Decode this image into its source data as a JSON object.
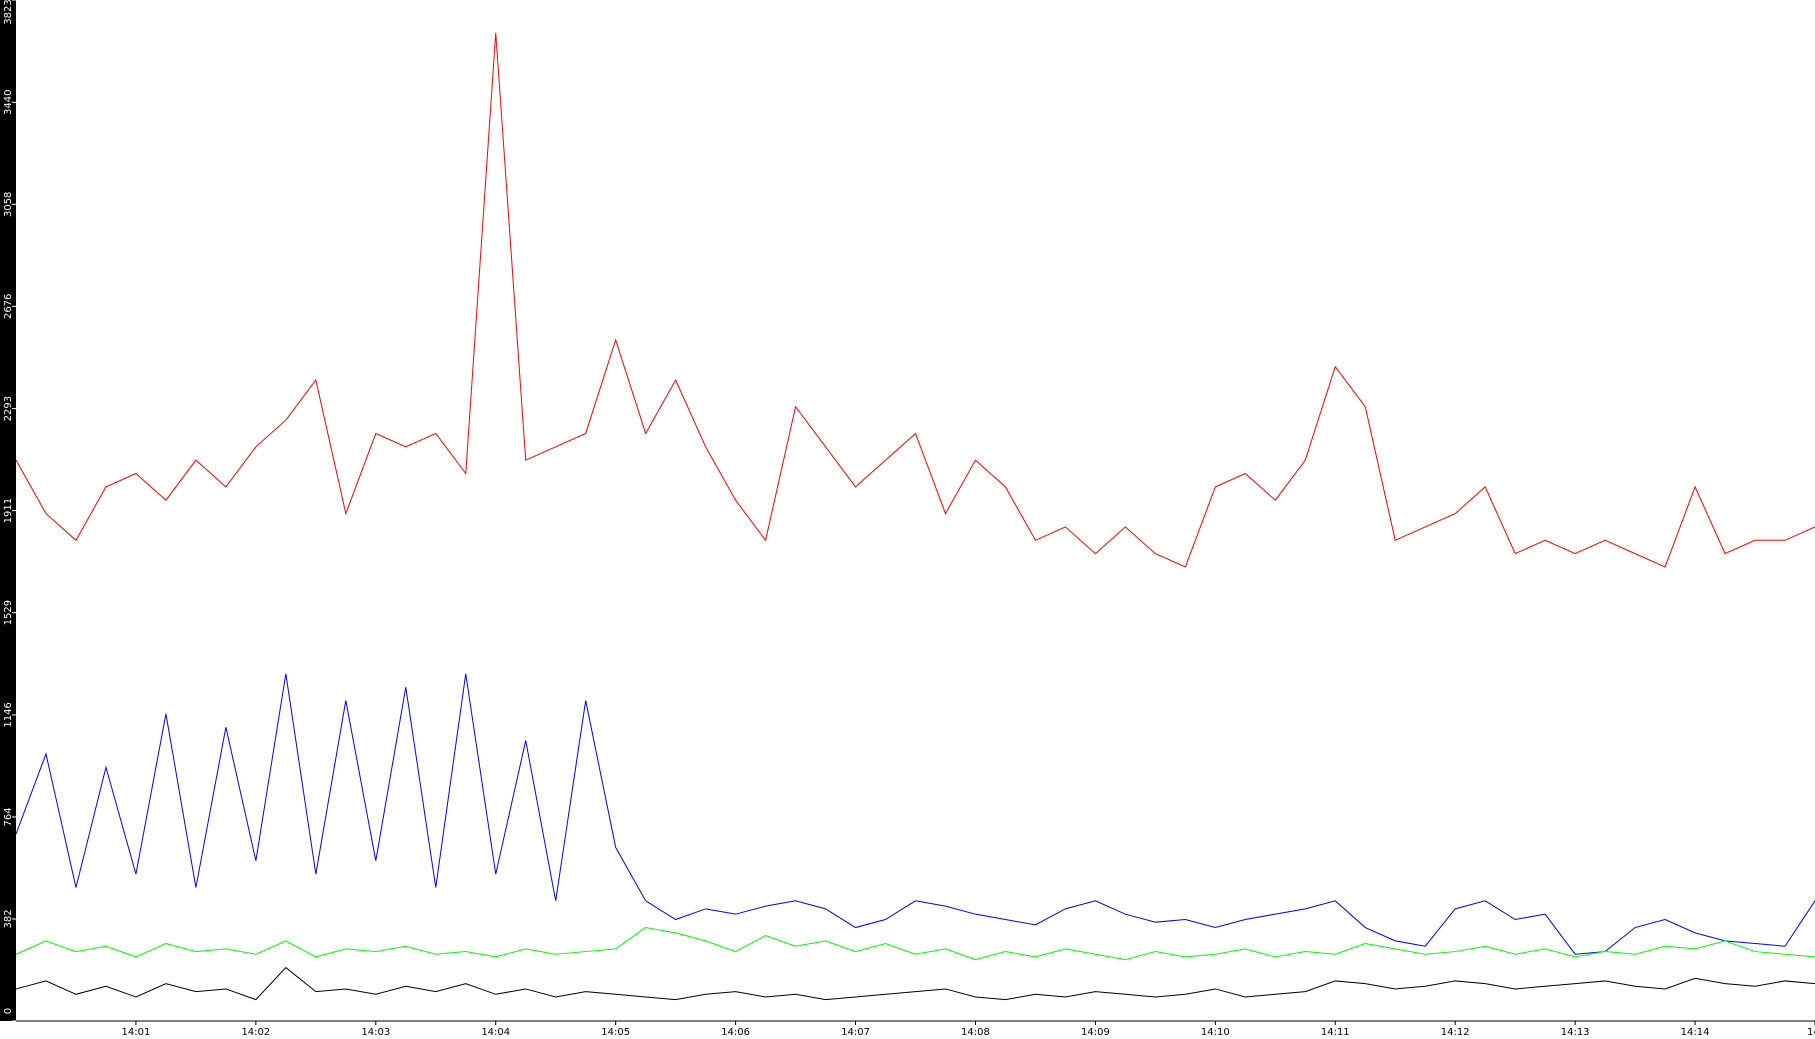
{
  "chart_data": {
    "type": "line",
    "x": [
      0,
      0.25,
      0.5,
      0.75,
      1,
      1.25,
      1.5,
      1.75,
      2,
      2.25,
      2.5,
      2.75,
      3,
      3.25,
      3.5,
      3.75,
      4,
      4.25,
      4.5,
      4.75,
      5,
      5.25,
      5.5,
      5.75,
      6,
      6.25,
      6.5,
      6.75,
      7,
      7.25,
      7.5,
      7.75,
      8,
      8.25,
      8.5,
      8.75,
      9,
      9.25,
      9.5,
      9.75,
      10,
      10.25,
      10.5,
      10.75,
      11,
      11.25,
      11.5,
      11.75,
      12,
      12.25,
      12.5,
      12.75,
      13,
      13.25,
      13.5,
      13.75,
      14,
      14.25,
      14.5,
      14.75,
      15
    ],
    "series": [
      {
        "color": "#ff0000",
        "values": [
          2100,
          1900,
          1800,
          2000,
          2050,
          1950,
          2100,
          2000,
          2150,
          2250,
          2400,
          1900,
          2200,
          2150,
          2200,
          2050,
          3700,
          2100,
          2150,
          2200,
          2550,
          2200,
          2400,
          2150,
          1950,
          1800,
          2300,
          2150,
          2000,
          2100,
          2200,
          1900,
          2100,
          2000,
          1800,
          1850,
          1750,
          1850,
          1750,
          1700,
          2000,
          2050,
          1950,
          2100,
          2450,
          2300,
          1800,
          1850,
          1900,
          2000,
          1750,
          1800,
          1750,
          1800,
          1750,
          1700,
          2000,
          1750,
          1800,
          1800,
          1850
        ]
      },
      {
        "color": "#0000ff",
        "values": [
          700,
          1000,
          500,
          950,
          550,
          1150,
          500,
          1100,
          600,
          1300,
          550,
          1200,
          600,
          1250,
          500,
          1300,
          550,
          1050,
          450,
          1200,
          650,
          450,
          380,
          420,
          400,
          430,
          450,
          420,
          350,
          380,
          450,
          430,
          400,
          380,
          360,
          420,
          450,
          400,
          370,
          380,
          350,
          380,
          400,
          420,
          450,
          350,
          300,
          280,
          420,
          450,
          380,
          400,
          250,
          260,
          350,
          380,
          330,
          300,
          290,
          280,
          450
        ]
      },
      {
        "color": "#00ff00",
        "values": [
          250,
          300,
          260,
          280,
          240,
          290,
          260,
          270,
          250,
          300,
          240,
          270,
          260,
          280,
          250,
          260,
          240,
          270,
          250,
          260,
          270,
          350,
          330,
          300,
          260,
          320,
          280,
          300,
          260,
          290,
          250,
          270,
          230,
          260,
          240,
          270,
          250,
          230,
          260,
          240,
          250,
          270,
          240,
          260,
          250,
          290,
          270,
          250,
          260,
          280,
          250,
          270,
          240,
          260,
          250,
          280,
          270,
          300,
          260,
          250,
          240
        ]
      },
      {
        "color": "#000000",
        "values": [
          120,
          150,
          100,
          130,
          90,
          140,
          110,
          120,
          80,
          200,
          110,
          120,
          100,
          130,
          110,
          140,
          100,
          120,
          90,
          110,
          100,
          90,
          80,
          100,
          110,
          90,
          100,
          80,
          90,
          100,
          110,
          120,
          90,
          80,
          100,
          90,
          110,
          100,
          90,
          100,
          120,
          90,
          100,
          110,
          150,
          140,
          120,
          130,
          150,
          140,
          120,
          130,
          140,
          150,
          130,
          120,
          160,
          140,
          130,
          150,
          140
        ]
      }
    ],
    "xlim": [
      0,
      15
    ],
    "xticks": [
      {
        "value": 1,
        "label": "14:01"
      },
      {
        "value": 2,
        "label": "14:02"
      },
      {
        "value": 3,
        "label": "14:03"
      },
      {
        "value": 4,
        "label": "14:04"
      },
      {
        "value": 5,
        "label": "14:05"
      },
      {
        "value": 6,
        "label": "14:06"
      },
      {
        "value": 7,
        "label": "14:07"
      },
      {
        "value": 8,
        "label": "14:08"
      },
      {
        "value": 9,
        "label": "14:09"
      },
      {
        "value": 10,
        "label": "14:10"
      },
      {
        "value": 11,
        "label": "14:11"
      },
      {
        "value": 12,
        "label": "14:12"
      },
      {
        "value": 13,
        "label": "14:13"
      },
      {
        "value": 14,
        "label": "14:14"
      },
      {
        "value": 15,
        "label": "14:"
      }
    ],
    "ylim": [
      0,
      3823
    ],
    "yticks": [
      0,
      382,
      764,
      1146,
      1529,
      1911,
      2293,
      2676,
      3058,
      3440,
      3823
    ]
  }
}
